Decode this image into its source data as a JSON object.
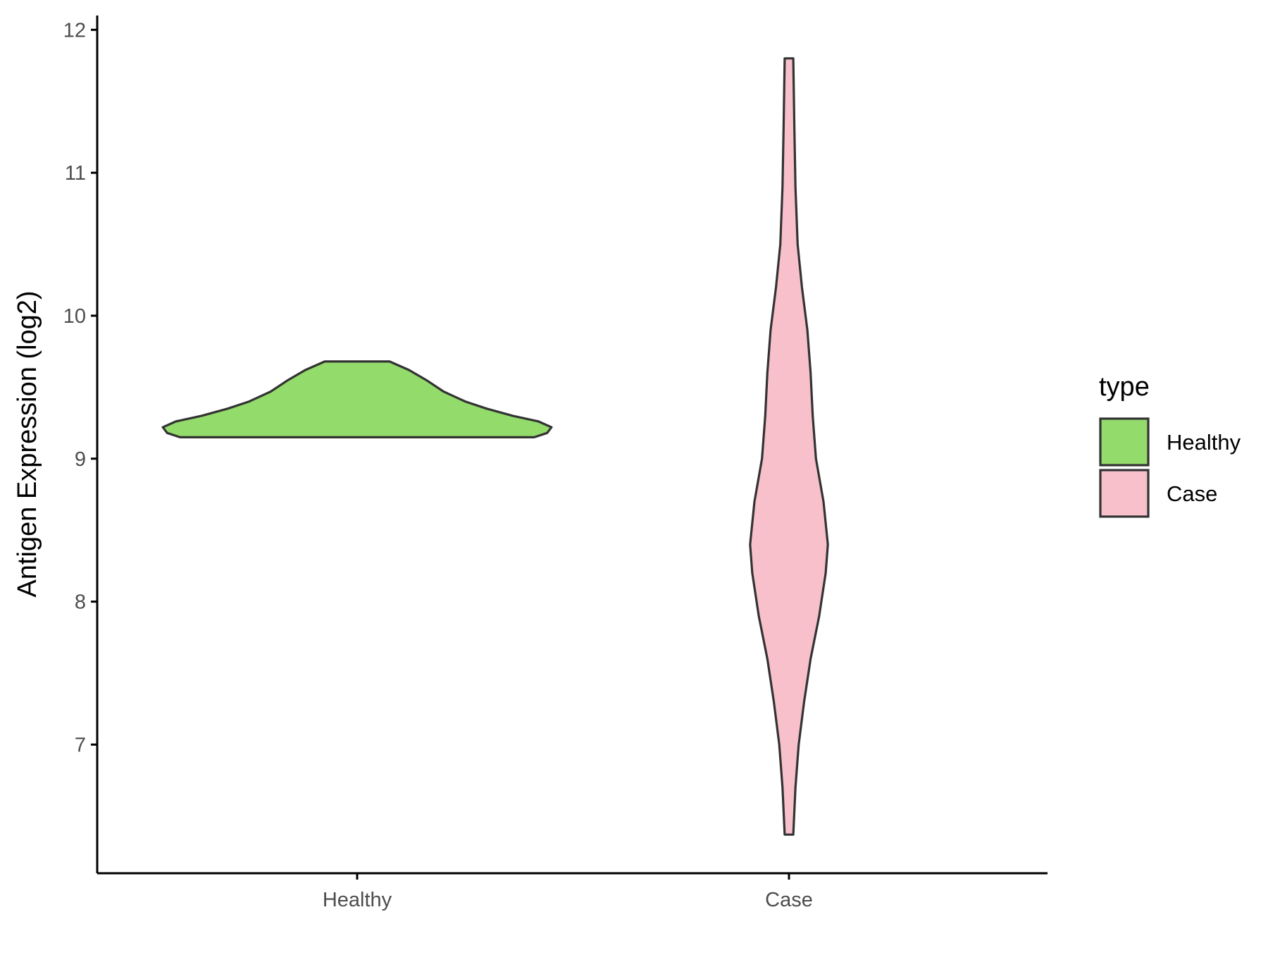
{
  "chart_data": {
    "type": "violin",
    "title": "",
    "xlabel": "",
    "ylabel": "Antigen Expression (log2)",
    "categories": [
      "Healthy",
      "Case"
    ],
    "y_ticks": [
      7,
      8,
      9,
      10,
      11,
      12
    ],
    "ylim": [
      6.1,
      12.1
    ],
    "grid": false,
    "legend": {
      "title": "type",
      "position": "right",
      "items": [
        {
          "label": "Healthy",
          "color": "#93DB6B"
        },
        {
          "label": "Case",
          "color": "#F7C0CB"
        }
      ]
    },
    "series": [
      {
        "name": "Healthy",
        "color": "#93DB6B",
        "min": 9.15,
        "max": 9.68,
        "density_profile": [
          {
            "y": 9.15,
            "half_width": 0.82
          },
          {
            "y": 9.18,
            "half_width": 0.88
          },
          {
            "y": 9.22,
            "half_width": 0.9
          },
          {
            "y": 9.26,
            "half_width": 0.84
          },
          {
            "y": 9.3,
            "half_width": 0.72
          },
          {
            "y": 9.35,
            "half_width": 0.6
          },
          {
            "y": 9.4,
            "half_width": 0.5
          },
          {
            "y": 9.47,
            "half_width": 0.4
          },
          {
            "y": 9.55,
            "half_width": 0.32
          },
          {
            "y": 9.62,
            "half_width": 0.24
          },
          {
            "y": 9.68,
            "half_width": 0.15
          }
        ]
      },
      {
        "name": "Case",
        "color": "#F7C0CB",
        "min": 6.37,
        "max": 11.8,
        "density_profile": [
          {
            "y": 6.37,
            "half_width": 0.02
          },
          {
            "y": 6.7,
            "half_width": 0.03
          },
          {
            "y": 7.0,
            "half_width": 0.045
          },
          {
            "y": 7.3,
            "half_width": 0.07
          },
          {
            "y": 7.6,
            "half_width": 0.1
          },
          {
            "y": 7.9,
            "half_width": 0.14
          },
          {
            "y": 8.2,
            "half_width": 0.17
          },
          {
            "y": 8.4,
            "half_width": 0.18
          },
          {
            "y": 8.7,
            "half_width": 0.16
          },
          {
            "y": 9.0,
            "half_width": 0.125
          },
          {
            "y": 9.3,
            "half_width": 0.11
          },
          {
            "y": 9.6,
            "half_width": 0.1
          },
          {
            "y": 9.9,
            "half_width": 0.085
          },
          {
            "y": 10.2,
            "half_width": 0.06
          },
          {
            "y": 10.5,
            "half_width": 0.04
          },
          {
            "y": 10.9,
            "half_width": 0.03
          },
          {
            "y": 11.3,
            "half_width": 0.025
          },
          {
            "y": 11.8,
            "half_width": 0.02
          }
        ]
      }
    ]
  },
  "colors": {
    "axis": "#000000",
    "outline": "#333333",
    "tick_label": "#4D4D4D"
  }
}
